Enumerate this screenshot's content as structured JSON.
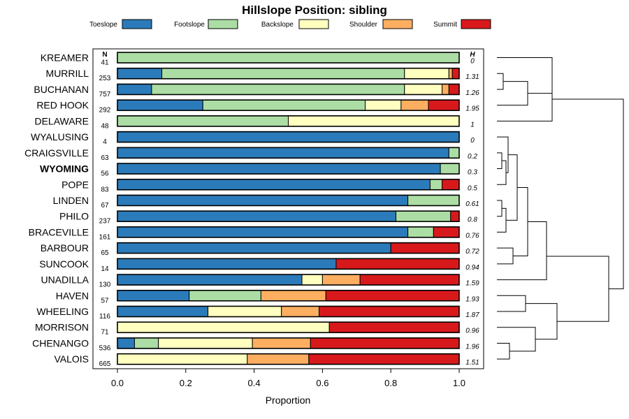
{
  "chart_data": {
    "type": "bar",
    "orientation": "horizontal",
    "stacked": true,
    "title": "Hillslope Position: sibling",
    "xlabel": "Proportion",
    "ylabel": "",
    "xlim": [
      0,
      1
    ],
    "x_ticks": [
      "0.0",
      "0.2",
      "0.4",
      "0.6",
      "0.8",
      "1.0"
    ],
    "x_tick_values": [
      0,
      0.2,
      0.4,
      0.6,
      0.8,
      1.0
    ],
    "legend_position": "top",
    "n_header": "N",
    "h_header": "H",
    "series": [
      {
        "name": "Toeslope",
        "color": "#2b7bba"
      },
      {
        "name": "Footslope",
        "color": "#abdda4"
      },
      {
        "name": "Backslope",
        "color": "#ffffbf"
      },
      {
        "name": "Shoulder",
        "color": "#fdae61"
      },
      {
        "name": "Summit",
        "color": "#d7191c"
      }
    ],
    "categories": [
      "KREAMER",
      "MURRILL",
      "BUCHANAN",
      "RED HOOK",
      "DELAWARE",
      "WYALUSING",
      "CRAIGSVILLE",
      "WYOMING",
      "POPE",
      "LINDEN",
      "PHILO",
      "BRACEVILLE",
      "BARBOUR",
      "SUNCOOK",
      "UNADILLA",
      "HAVEN",
      "WHEELING",
      "MORRISON",
      "CHENANGO",
      "VALOIS"
    ],
    "highlighted_category": "WYOMING",
    "rows": [
      {
        "name": "KREAMER",
        "n": "41",
        "h": "0",
        "values": [
          0,
          1.0,
          0,
          0,
          0
        ]
      },
      {
        "name": "MURRILL",
        "n": "253",
        "h": "1.31",
        "values": [
          0.13,
          0.71,
          0.13,
          0.01,
          0.02
        ]
      },
      {
        "name": "BUCHANAN",
        "n": "757",
        "h": "1.26",
        "values": [
          0.1,
          0.74,
          0.11,
          0.02,
          0.03
        ]
      },
      {
        "name": "RED HOOK",
        "n": "292",
        "h": "1.95",
        "values": [
          0.25,
          0.475,
          0.105,
          0.08,
          0.09
        ]
      },
      {
        "name": "DELAWARE",
        "n": "48",
        "h": "1",
        "values": [
          0,
          0.5,
          0.5,
          0,
          0
        ]
      },
      {
        "name": "WYALUSING",
        "n": "4",
        "h": "0",
        "values": [
          1.0,
          0,
          0,
          0,
          0
        ]
      },
      {
        "name": "CRAIGSVILLE",
        "n": "63",
        "h": "0.2",
        "values": [
          0.97,
          0.03,
          0,
          0,
          0
        ]
      },
      {
        "name": "WYOMING",
        "n": "56",
        "h": "0.3",
        "values": [
          0.945,
          0.055,
          0,
          0,
          0
        ]
      },
      {
        "name": "POPE",
        "n": "83",
        "h": "0.5",
        "values": [
          0.915,
          0.035,
          0,
          0,
          0.05
        ]
      },
      {
        "name": "LINDEN",
        "n": "67",
        "h": "0.61",
        "values": [
          0.85,
          0.15,
          0,
          0,
          0
        ]
      },
      {
        "name": "PHILO",
        "n": "237",
        "h": "0.8",
        "values": [
          0.815,
          0.16,
          0,
          0,
          0.025
        ]
      },
      {
        "name": "BRACEVILLE",
        "n": "161",
        "h": "0.76",
        "values": [
          0.85,
          0.075,
          0,
          0,
          0.075
        ]
      },
      {
        "name": "BARBOUR",
        "n": "65",
        "h": "0.72",
        "values": [
          0.8,
          0,
          0,
          0,
          0.2
        ]
      },
      {
        "name": "SUNCOOK",
        "n": "14",
        "h": "0.94",
        "values": [
          0.64,
          0,
          0,
          0,
          0.36
        ]
      },
      {
        "name": "UNADILLA",
        "n": "130",
        "h": "1.59",
        "values": [
          0.54,
          0,
          0.06,
          0.11,
          0.29
        ]
      },
      {
        "name": "HAVEN",
        "n": "57",
        "h": "1.93",
        "values": [
          0.21,
          0.21,
          0,
          0.19,
          0.39
        ]
      },
      {
        "name": "WHEELING",
        "n": "116",
        "h": "1.87",
        "values": [
          0.265,
          0,
          0.215,
          0.11,
          0.41
        ]
      },
      {
        "name": "MORRISON",
        "n": "71",
        "h": "0.96",
        "values": [
          0,
          0,
          0.62,
          0,
          0.38
        ]
      },
      {
        "name": "CHENANGO",
        "n": "536",
        "h": "1.96",
        "values": [
          0.05,
          0.07,
          0.275,
          0.17,
          0.435
        ]
      },
      {
        "name": "VALOIS",
        "n": "665",
        "h": "1.51",
        "values": [
          0,
          0,
          0.38,
          0.18,
          0.44
        ]
      }
    ],
    "dendrogram": {
      "description": "hierarchical clustering of profiles",
      "leaf_order": [
        "KREAMER",
        "MURRILL",
        "BUCHANAN",
        "RED HOOK",
        "DELAWARE",
        "WYALUSING",
        "CRAIGSVILLE",
        "WYOMING",
        "POPE",
        "LINDEN",
        "PHILO",
        "BRACEVILLE",
        "BARBOUR",
        "SUNCOOK",
        "UNADILLA",
        "HAVEN",
        "WHEELING",
        "MORRISON",
        "CHENANGO",
        "VALOIS"
      ]
    }
  }
}
